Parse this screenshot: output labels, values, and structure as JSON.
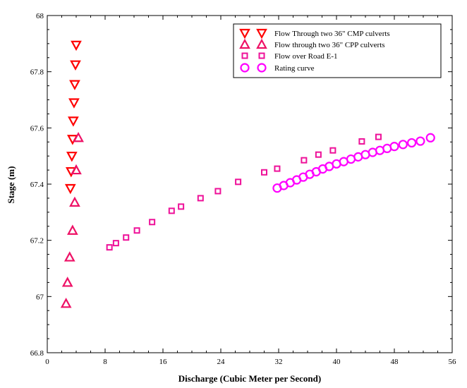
{
  "chart_data": {
    "type": "scatter",
    "title": "",
    "xlabel": "Discharge (Cubic Meter per Second)",
    "ylabel": "Stage (m)",
    "xlim": [
      0,
      56
    ],
    "ylim": [
      66.8,
      68
    ],
    "xticks": [
      "0",
      "8",
      "16",
      "24",
      "32",
      "40",
      "48",
      "56"
    ],
    "yticks": [
      "66.8",
      "67",
      "67.2",
      "67.4",
      "67.6",
      "67.8",
      "68"
    ],
    "grid": false,
    "legend_position": "top-right",
    "series": [
      {
        "name": "Flow Through two 36\" CMP culverts",
        "marker": "triangle-down",
        "color": "#ff0000",
        "points": [
          [
            3.2,
            67.385
          ],
          [
            3.3,
            67.445
          ],
          [
            3.4,
            67.5
          ],
          [
            3.5,
            67.56
          ],
          [
            3.6,
            67.625
          ],
          [
            3.7,
            67.69
          ],
          [
            3.8,
            67.755
          ],
          [
            3.9,
            67.825
          ],
          [
            4.0,
            67.895
          ]
        ]
      },
      {
        "name": "Flow through two 36\" CPP culverts",
        "marker": "triangle-up",
        "color": "#ee1166",
        "points": [
          [
            2.6,
            66.975
          ],
          [
            2.8,
            67.05
          ],
          [
            3.1,
            67.14
          ],
          [
            3.5,
            67.235
          ],
          [
            3.8,
            67.335
          ],
          [
            4.0,
            67.45
          ],
          [
            4.3,
            67.565
          ]
        ]
      },
      {
        "name": "Flow over Road E-1",
        "marker": "square",
        "color": "#ee1199",
        "points": [
          [
            8.6,
            67.175
          ],
          [
            9.5,
            67.19
          ],
          [
            10.9,
            67.21
          ],
          [
            12.4,
            67.235
          ],
          [
            14.5,
            67.265
          ],
          [
            17.2,
            67.305
          ],
          [
            18.5,
            67.32
          ],
          [
            21.2,
            67.35
          ],
          [
            23.6,
            67.375
          ],
          [
            26.4,
            67.408
          ],
          [
            30.0,
            67.442
          ],
          [
            31.8,
            67.455
          ],
          [
            35.5,
            67.485
          ],
          [
            37.5,
            67.505
          ],
          [
            39.5,
            67.52
          ],
          [
            43.5,
            67.552
          ],
          [
            45.8,
            67.568
          ]
        ]
      },
      {
        "name": "Rating curve",
        "marker": "circle",
        "color": "#ff00ff",
        "points": [
          [
            31.8,
            67.386
          ],
          [
            32.7,
            67.395
          ],
          [
            33.6,
            67.405
          ],
          [
            34.5,
            67.415
          ],
          [
            35.4,
            67.425
          ],
          [
            36.3,
            67.435
          ],
          [
            37.2,
            67.444
          ],
          [
            38.1,
            67.454
          ],
          [
            39.0,
            67.463
          ],
          [
            40.0,
            67.472
          ],
          [
            41.0,
            67.48
          ],
          [
            42.0,
            67.489
          ],
          [
            43.0,
            67.497
          ],
          [
            44.0,
            67.505
          ],
          [
            45.0,
            67.513
          ],
          [
            46.0,
            67.52
          ],
          [
            47.0,
            67.527
          ],
          [
            48.0,
            67.534
          ],
          [
            49.2,
            67.541
          ],
          [
            50.4,
            67.547
          ],
          [
            51.6,
            67.553
          ],
          [
            53.0,
            67.565
          ]
        ]
      }
    ]
  }
}
